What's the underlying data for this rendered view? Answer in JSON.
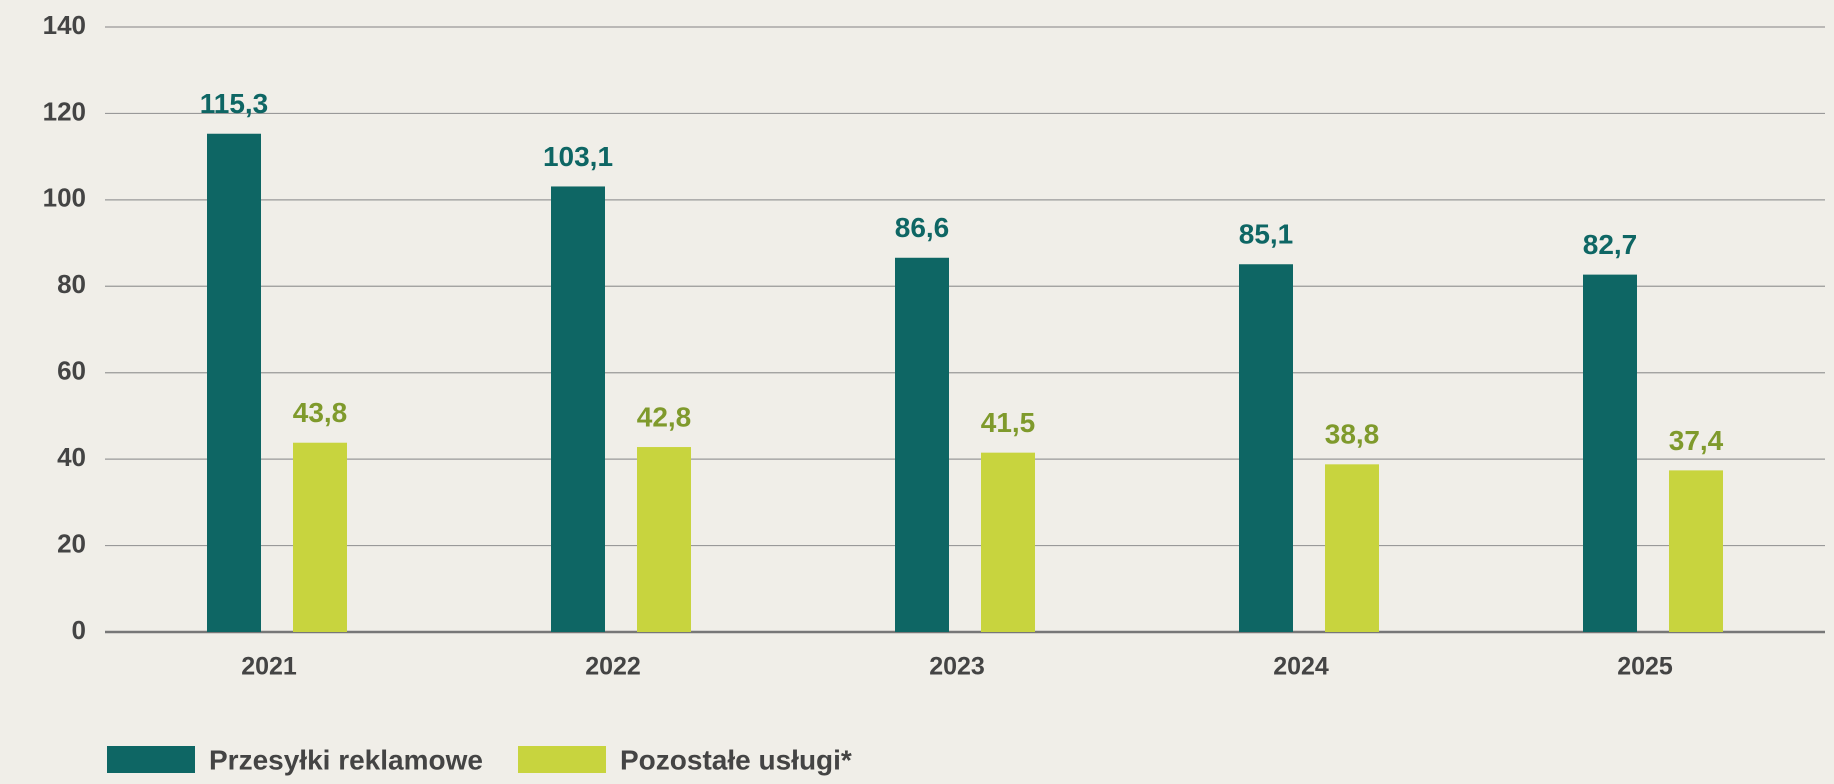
{
  "chart_data": {
    "type": "bar",
    "categories": [
      "2021",
      "2022",
      "2023",
      "2024",
      "2025"
    ],
    "series": [
      {
        "name": "Przesyłki reklamowe",
        "color": "#0e6664",
        "label_color": "#0e6664",
        "values": [
          115.3,
          103.1,
          86.6,
          85.1,
          82.7
        ],
        "value_labels": [
          "115,3",
          "103,1",
          "86,6",
          "85,1",
          "82,7"
        ]
      },
      {
        "name": "Pozostałe usługi*",
        "color": "#c8d43e",
        "label_color": "#7f9a2c",
        "values": [
          43.8,
          42.8,
          41.5,
          38.8,
          37.4
        ],
        "value_labels": [
          "43,8",
          "42,8",
          "41,5",
          "38,8",
          "37,4"
        ]
      }
    ],
    "ylim": [
      0,
      140
    ],
    "yticks": [
      0,
      20,
      40,
      60,
      80,
      100,
      120,
      140
    ],
    "grid": true,
    "legend": "bottom-left"
  }
}
